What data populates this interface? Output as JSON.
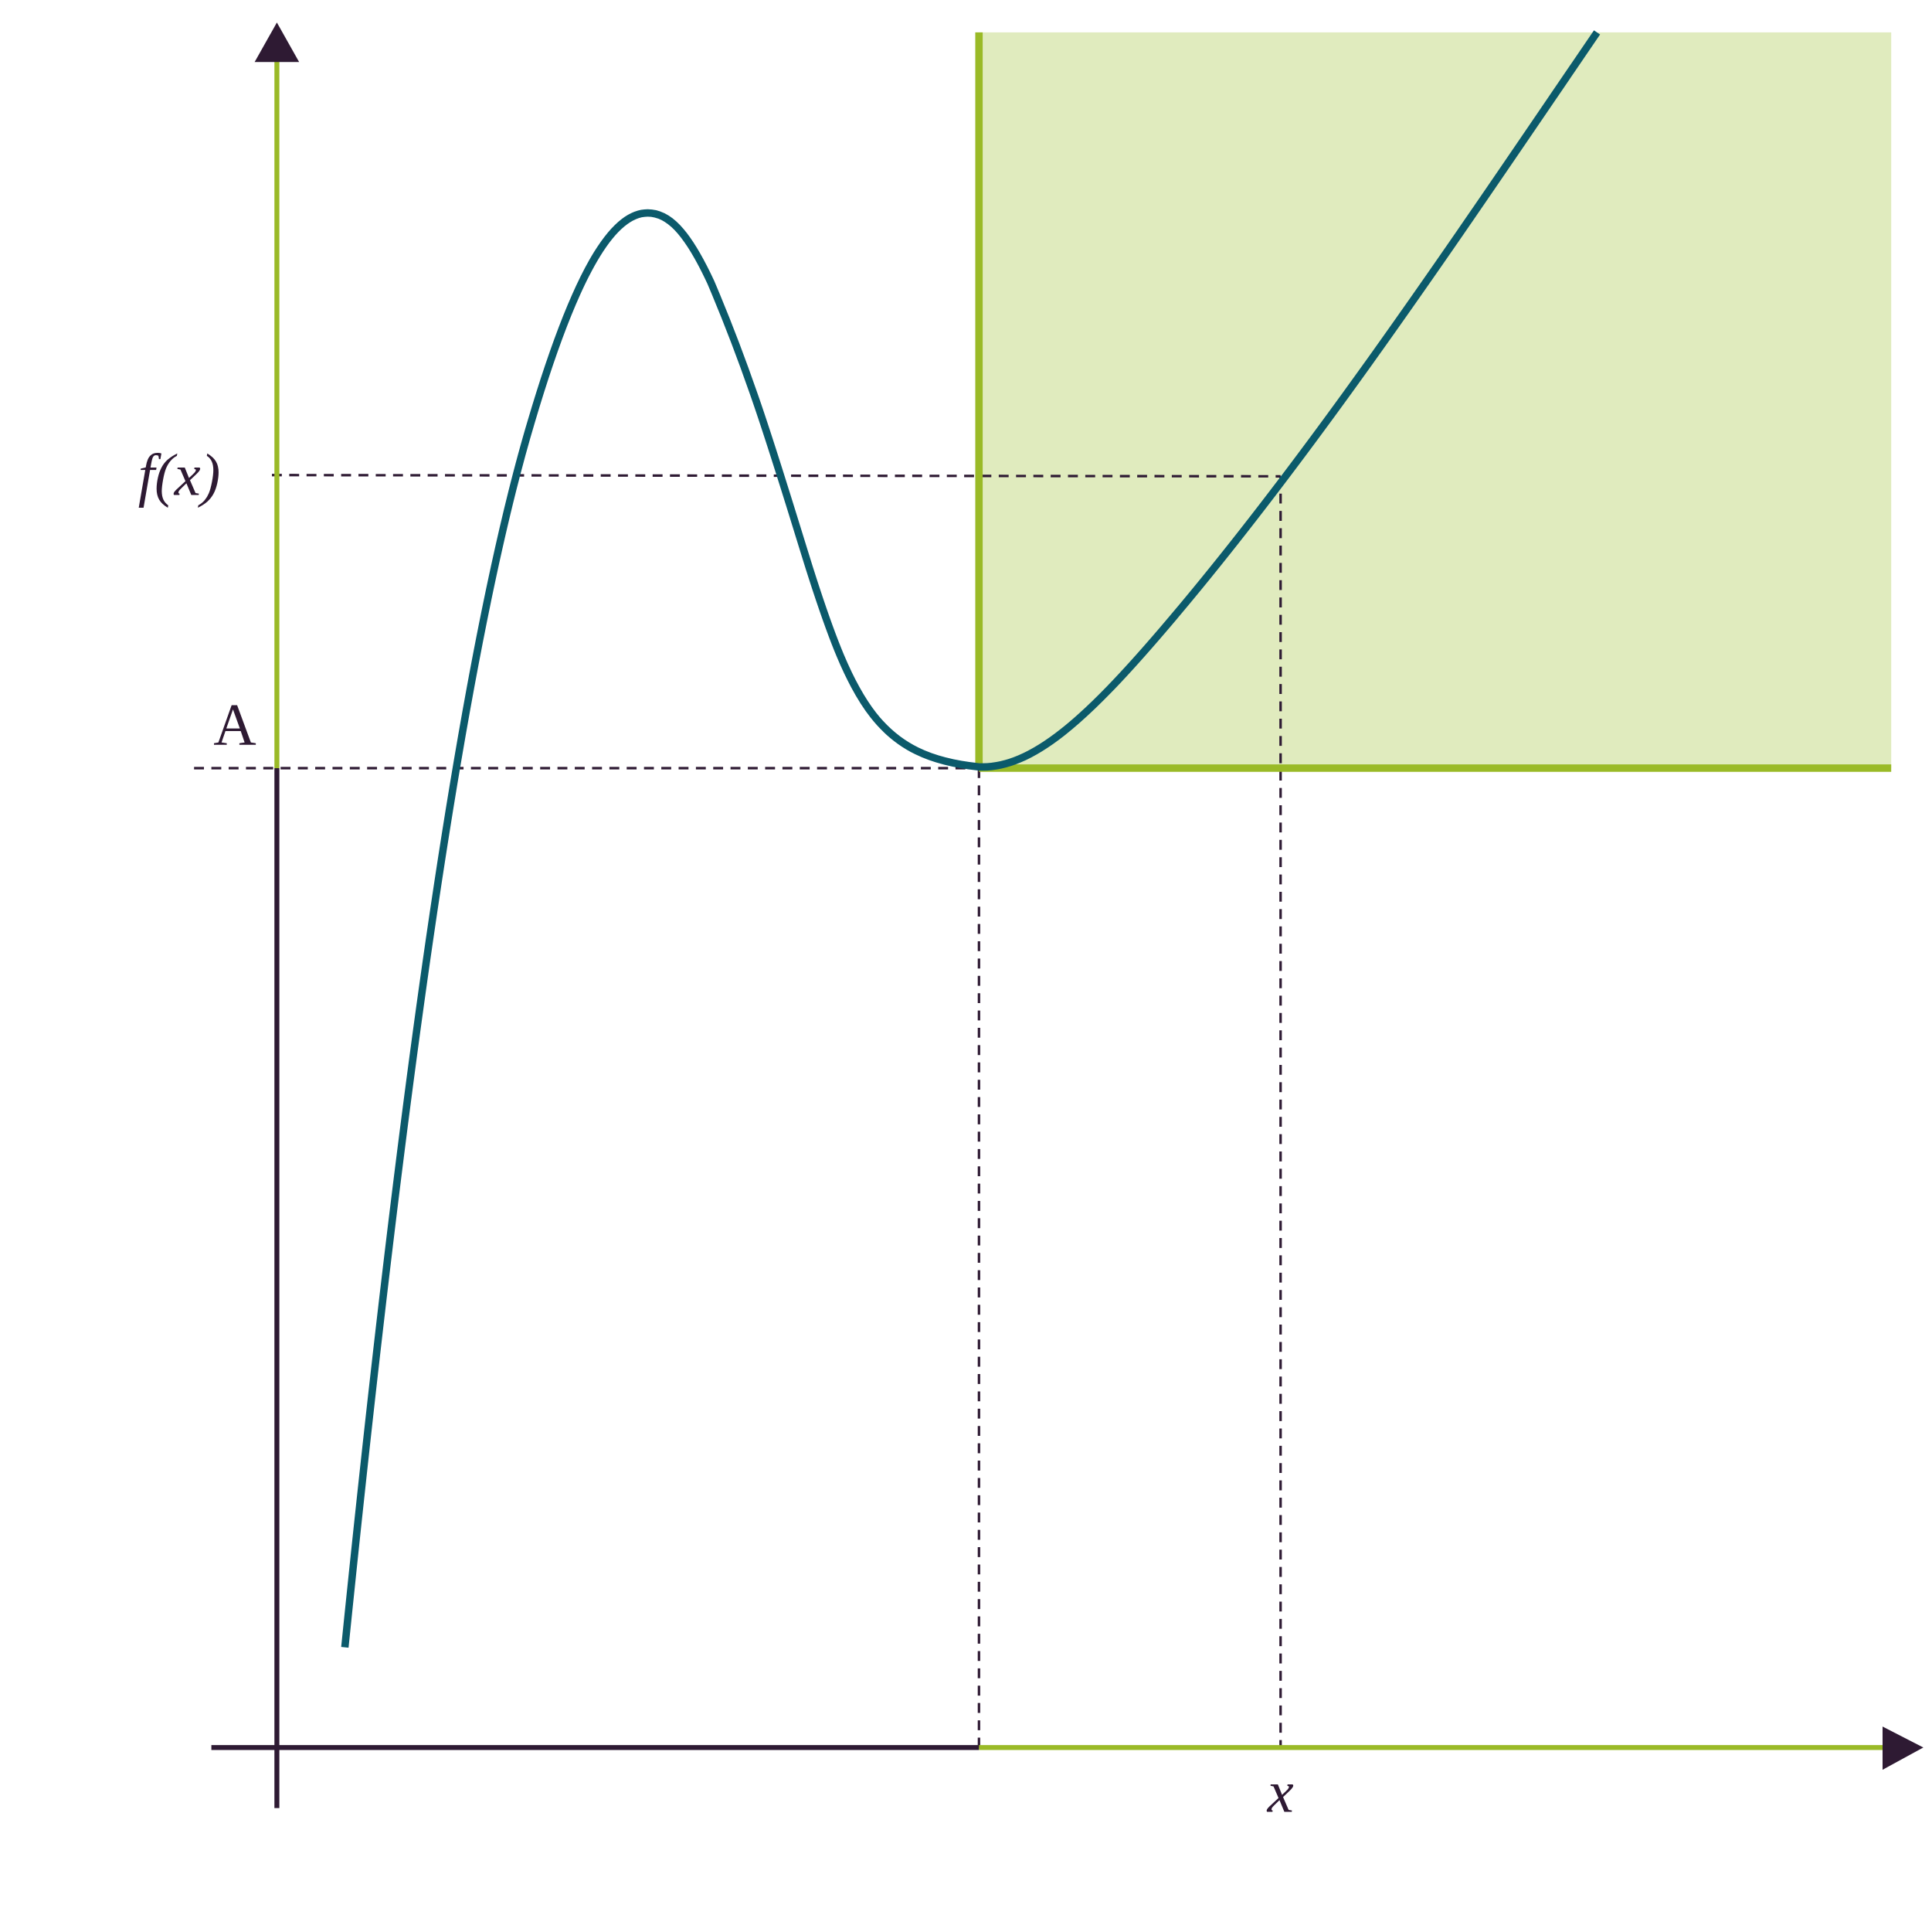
{
  "labels": {
    "fx": "f(x)",
    "a": "A",
    "x": "x"
  }
}
